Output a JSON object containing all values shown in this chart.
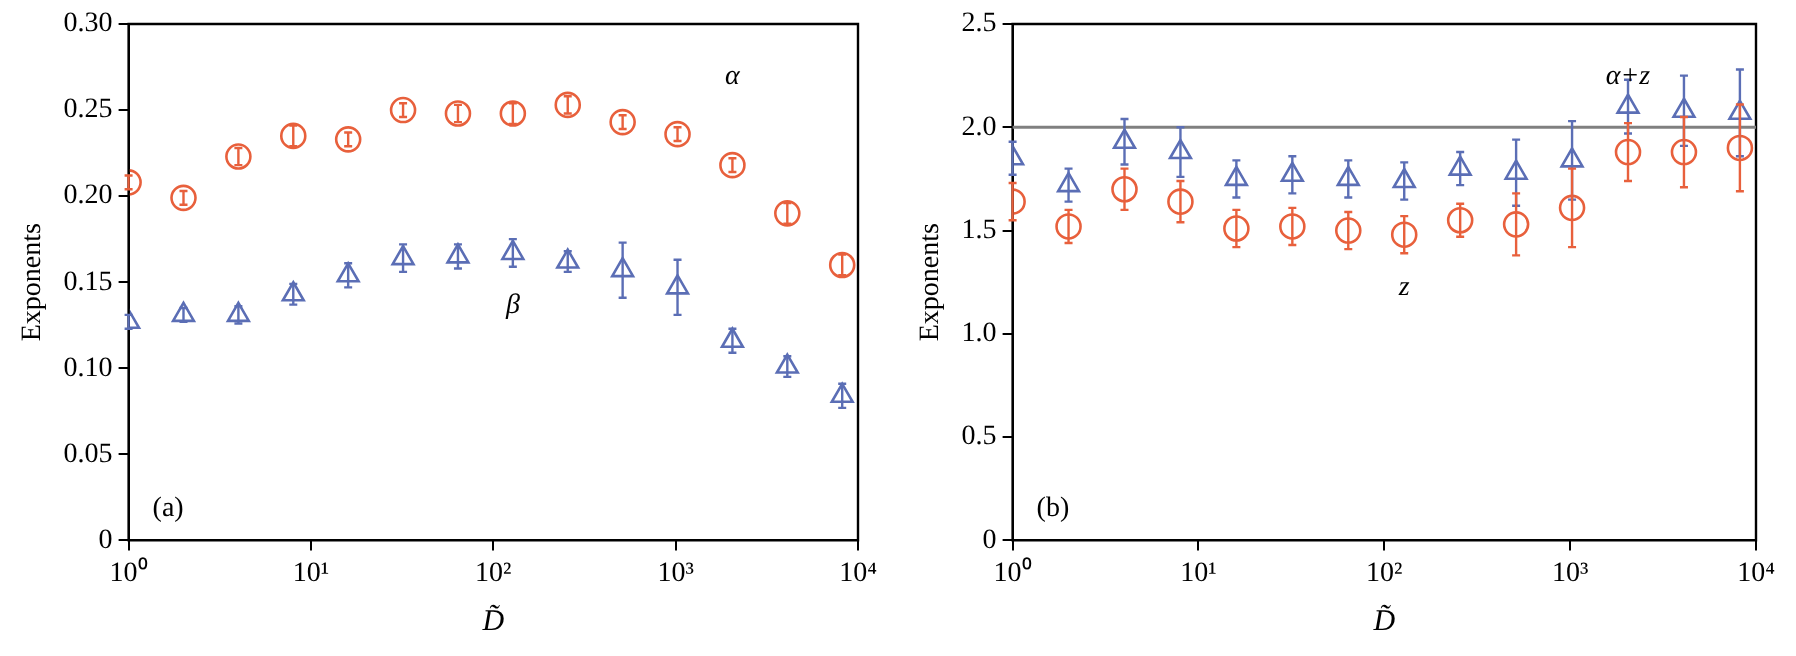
{
  "chart_data": [
    {
      "type": "scatter",
      "ylabel": "Exponents",
      "xlabel": "D̃",
      "log": "x",
      "grid": false,
      "legend": false,
      "annotations": [
        "(a)"
      ],
      "x": [
        1,
        2,
        4,
        8,
        16,
        32,
        64,
        128,
        256,
        512,
        1024,
        2048,
        4096,
        8192
      ],
      "xlim": [
        1,
        10000
      ],
      "xticks": [
        {
          "value": 1,
          "label": "10⁰"
        },
        {
          "value": 10,
          "label": "10¹"
        },
        {
          "value": 100,
          "label": "10²"
        },
        {
          "value": 1000,
          "label": "10³"
        },
        {
          "value": 10000,
          "label": "10⁴"
        }
      ],
      "ylim": [
        0,
        0.3
      ],
      "yticks": [
        {
          "value": 0,
          "label": "0"
        },
        {
          "value": 0.05,
          "label": "0.05"
        },
        {
          "value": 0.1,
          "label": "0.10"
        },
        {
          "value": 0.15,
          "label": "0.15"
        },
        {
          "value": 0.2,
          "label": "0.20"
        },
        {
          "value": 0.25,
          "label": "0.25"
        },
        {
          "value": 0.3,
          "label": "0.30"
        }
      ],
      "series": [
        {
          "name": "α",
          "color": "#e8603c",
          "marker": "circle",
          "values": [
            0.208,
            0.199,
            0.223,
            0.235,
            0.233,
            0.25,
            0.248,
            0.248,
            0.253,
            0.243,
            0.236,
            0.218,
            0.19,
            0.16
          ],
          "errors": [
            0.004,
            0.004,
            0.005,
            0.006,
            0.004,
            0.004,
            0.005,
            0.006,
            0.005,
            0.004,
            0.004,
            0.004,
            0.006,
            0.006
          ]
        },
        {
          "name": "β",
          "color": "#5b6eb5",
          "marker": "triangle",
          "values": [
            0.127,
            0.131,
            0.131,
            0.143,
            0.154,
            0.164,
            0.165,
            0.167,
            0.162,
            0.157,
            0.147,
            0.116,
            0.101,
            0.084
          ],
          "errors": [
            0.004,
            0.004,
            0.005,
            0.006,
            0.007,
            0.008,
            0.007,
            0.008,
            0.006,
            0.016,
            0.016,
            0.007,
            0.006,
            0.007
          ]
        }
      ]
    },
    {
      "type": "scatter",
      "ylabel": "Exponents",
      "xlabel": "D̃",
      "log": "x",
      "grid": false,
      "legend": false,
      "annotations": [
        "(b)"
      ],
      "x": [
        1,
        2,
        4,
        8,
        16,
        32,
        64,
        128,
        256,
        512,
        1024,
        2048,
        4096,
        8192
      ],
      "xlim": [
        1,
        10000
      ],
      "xticks": [
        {
          "value": 1,
          "label": "10⁰"
        },
        {
          "value": 10,
          "label": "10¹"
        },
        {
          "value": 100,
          "label": "10²"
        },
        {
          "value": 1000,
          "label": "10³"
        },
        {
          "value": 10000,
          "label": "10⁴"
        }
      ],
      "ylim": [
        0,
        2.5
      ],
      "yticks": [
        {
          "value": 0,
          "label": "0"
        },
        {
          "value": 0.5,
          "label": "0.5"
        },
        {
          "value": 1,
          "label": "1.0"
        },
        {
          "value": 1.5,
          "label": "1.5"
        },
        {
          "value": 2,
          "label": "2.0"
        },
        {
          "value": 2.5,
          "label": "2.5"
        }
      ],
      "ref_lines": [
        {
          "axis": "y",
          "value": 2,
          "color": "#808080"
        }
      ],
      "series": [
        {
          "name": "α+z",
          "color": "#5b6eb5",
          "marker": "triangle",
          "values": [
            1.85,
            1.72,
            1.93,
            1.88,
            1.75,
            1.77,
            1.75,
            1.74,
            1.8,
            1.78,
            1.84,
            2.1,
            2.08,
            2.07
          ],
          "errors": [
            0.08,
            0.08,
            0.11,
            0.12,
            0.09,
            0.09,
            0.09,
            0.09,
            0.08,
            0.16,
            0.19,
            0.13,
            0.17,
            0.21
          ]
        },
        {
          "name": "z",
          "color": "#e8603c",
          "marker": "circle",
          "values": [
            1.64,
            1.52,
            1.7,
            1.64,
            1.51,
            1.52,
            1.5,
            1.48,
            1.55,
            1.53,
            1.61,
            1.88,
            1.88,
            1.9
          ],
          "errors": [
            0.09,
            0.08,
            0.1,
            0.1,
            0.09,
            0.09,
            0.09,
            0.09,
            0.08,
            0.15,
            0.19,
            0.14,
            0.17,
            0.21
          ]
        }
      ]
    }
  ]
}
